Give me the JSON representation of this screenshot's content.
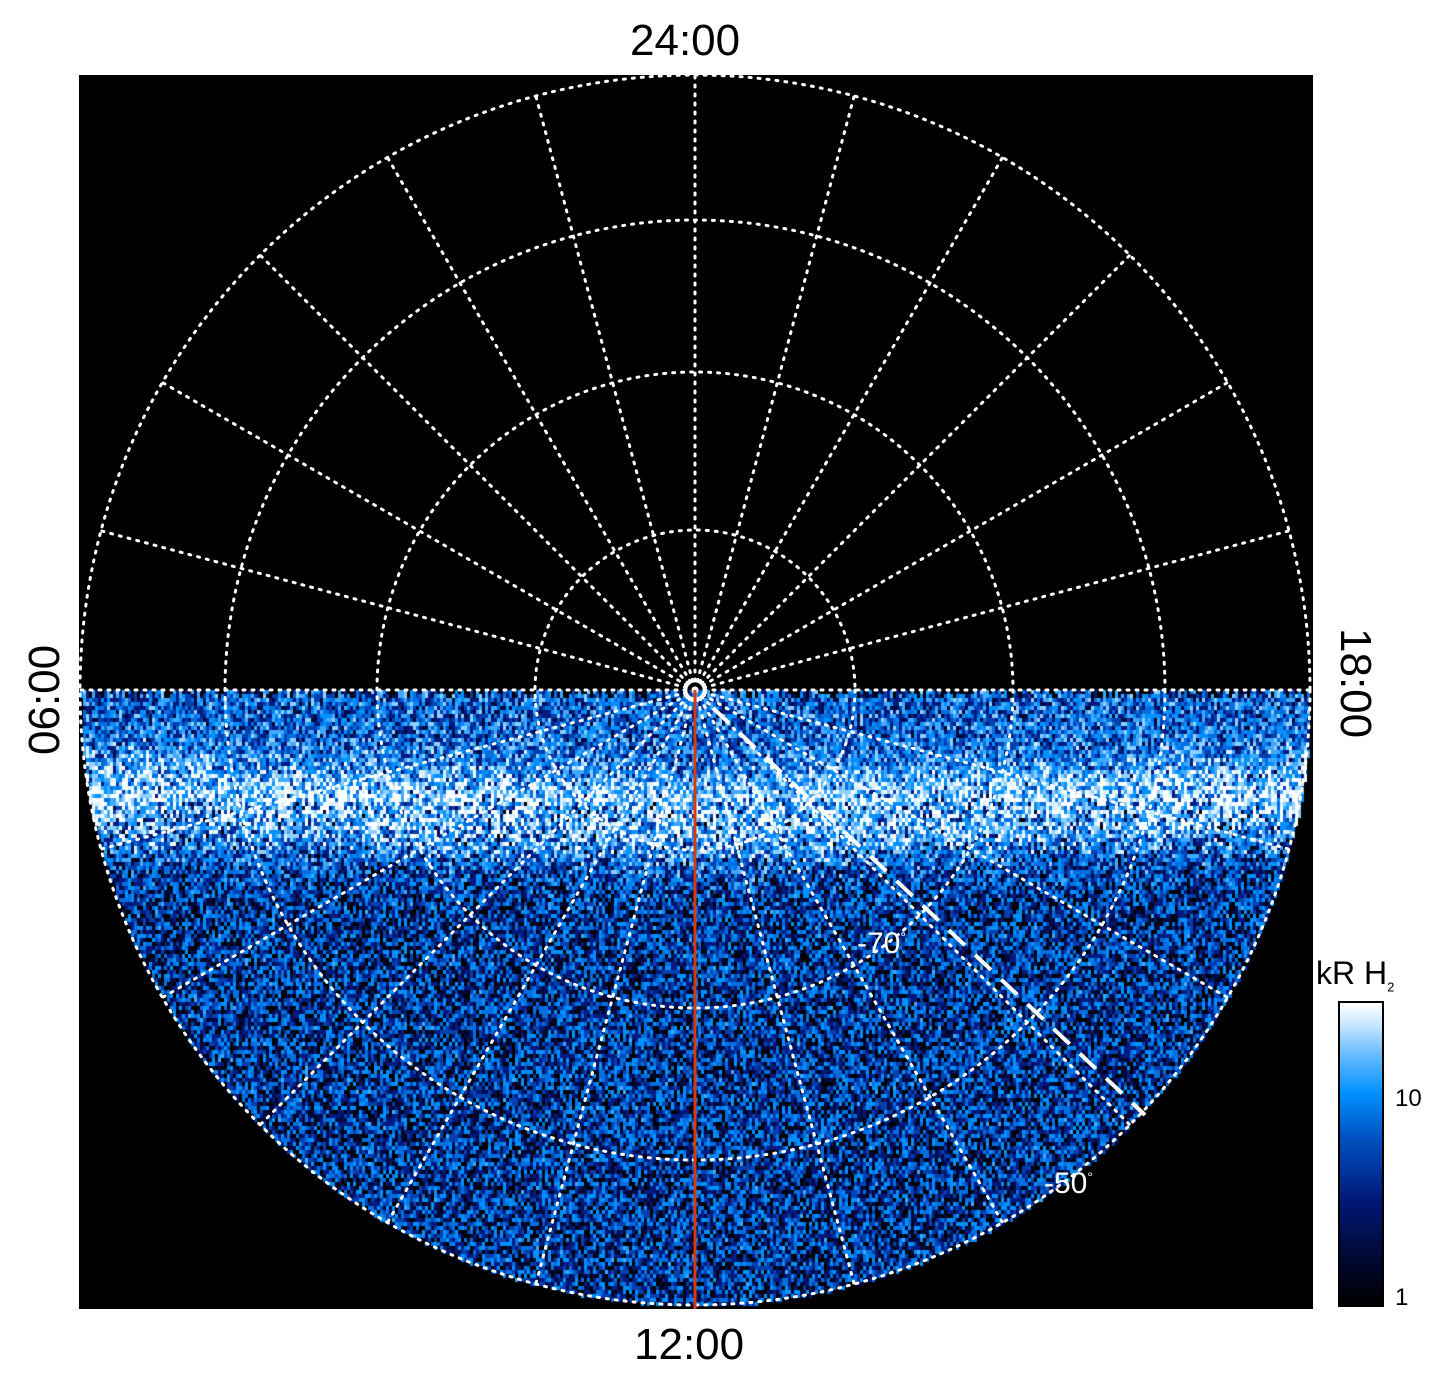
{
  "chart_data": {
    "type": "heatmap",
    "projection": "polar (south pole view)",
    "title": "",
    "local_time_labels": {
      "top": "24:00",
      "bottom": "12:00",
      "left": "06:00",
      "right": "18:00"
    },
    "latitude_rings_deg": [
      -50,
      -60,
      -70,
      -80
    ],
    "latitude_labels": [
      {
        "text": "-70",
        "unit": "°"
      },
      {
        "text": "-50",
        "unit": "°"
      }
    ],
    "meridian_step_hours": 1,
    "data_coverage": "dayside half (06:00 through 12:00 to 18:00)",
    "colorbar": {
      "label": "kR H",
      "label_sub": "2",
      "scale": "log",
      "range": [
        1,
        30
      ],
      "ticks": [
        {
          "value": 1,
          "label": "1"
        },
        {
          "value": 10,
          "label": "10"
        }
      ]
    },
    "colors": {
      "marker_line": "#d83a10",
      "grid": "#ffffff",
      "background": "#000000"
    }
  }
}
